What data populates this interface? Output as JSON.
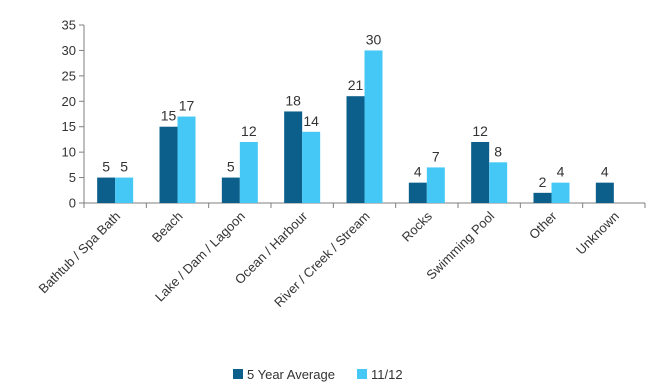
{
  "chart_data": {
    "type": "bar",
    "title": "",
    "xlabel": "",
    "ylabel": "",
    "ylim": [
      0,
      35
    ],
    "yticks": [
      0,
      5,
      10,
      15,
      20,
      25,
      30,
      35
    ],
    "grid": false,
    "legend_position": "bottom",
    "categories": [
      "Bathtub / Spa Bath",
      "Beach",
      "Lake / Dam / Lagoon",
      "Ocean / Harbour",
      "River / Creek / Stream",
      "Rocks",
      "Swimming Pool",
      "Other",
      "Unknown"
    ],
    "series": [
      {
        "name": "5 Year Average",
        "color": "#0b5f8a",
        "values": [
          5,
          15,
          5,
          18,
          21,
          4,
          12,
          2,
          4
        ]
      },
      {
        "name": "11/12",
        "color": "#45c8f5",
        "values": [
          5,
          17,
          12,
          14,
          30,
          7,
          8,
          4,
          null
        ]
      }
    ]
  }
}
